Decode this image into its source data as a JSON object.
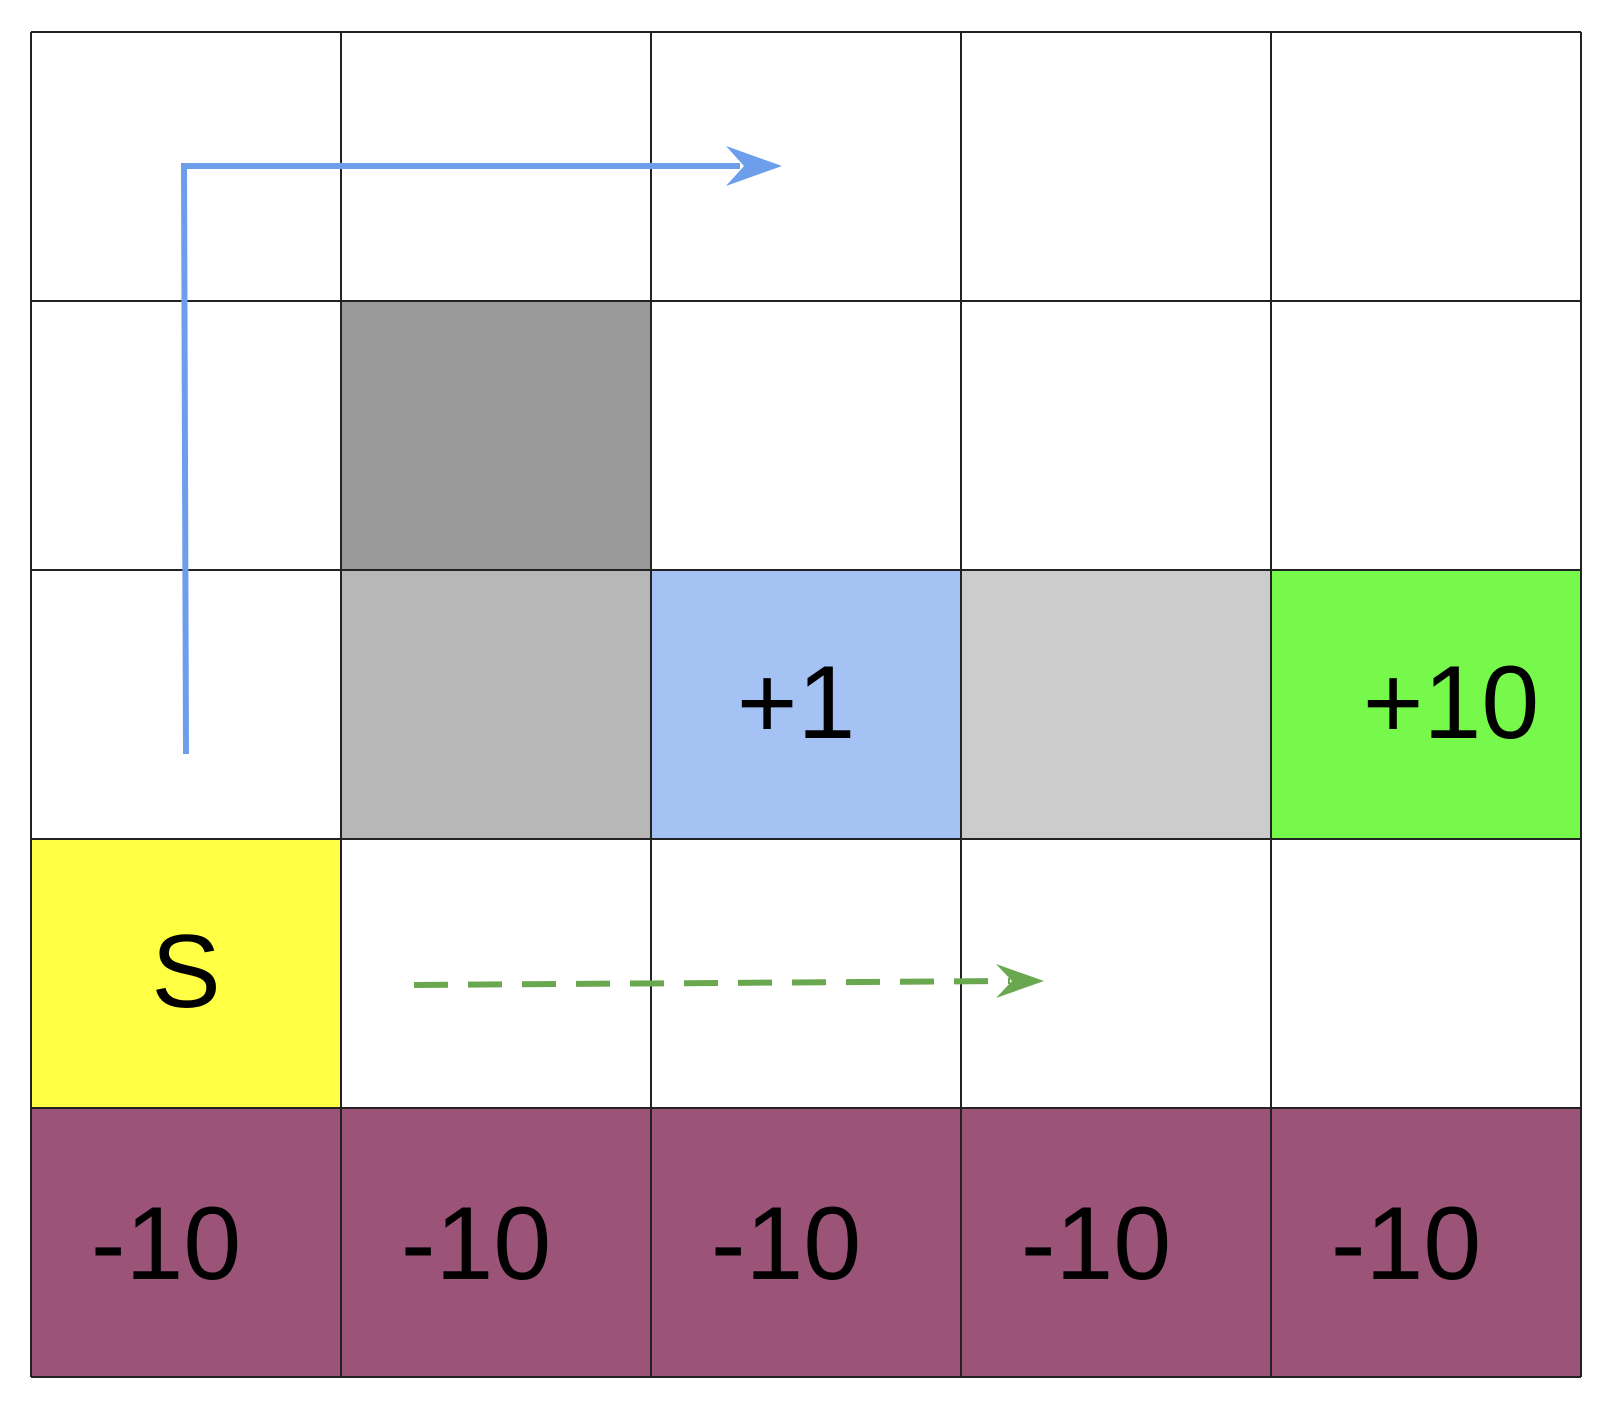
{
  "grid": {
    "rows": 5,
    "cols": 5,
    "cells": [
      [
        {
          "label": "",
          "color": "#ffffff",
          "kind": "empty"
        },
        {
          "label": "",
          "color": "#ffffff",
          "kind": "empty"
        },
        {
          "label": "",
          "color": "#ffffff",
          "kind": "empty"
        },
        {
          "label": "",
          "color": "#ffffff",
          "kind": "empty"
        },
        {
          "label": "",
          "color": "#ffffff",
          "kind": "empty"
        }
      ],
      [
        {
          "label": "",
          "color": "#ffffff",
          "kind": "empty"
        },
        {
          "label": "",
          "color": "#999999",
          "kind": "wall"
        },
        {
          "label": "",
          "color": "#ffffff",
          "kind": "empty"
        },
        {
          "label": "",
          "color": "#ffffff",
          "kind": "empty"
        },
        {
          "label": "",
          "color": "#ffffff",
          "kind": "empty"
        }
      ],
      [
        {
          "label": "",
          "color": "#ffffff",
          "kind": "empty"
        },
        {
          "label": "",
          "color": "#b7b7b7",
          "kind": "gray"
        },
        {
          "label": "+1",
          "color": "#a4c2f4",
          "kind": "reward"
        },
        {
          "label": "",
          "color": "#cccccc",
          "kind": "gray"
        },
        {
          "label": "+10",
          "color": "#76f94a",
          "kind": "goal"
        }
      ],
      [
        {
          "label": "S",
          "color": "#ffff44",
          "kind": "start"
        },
        {
          "label": "",
          "color": "#ffffff",
          "kind": "empty"
        },
        {
          "label": "",
          "color": "#ffffff",
          "kind": "empty"
        },
        {
          "label": "",
          "color": "#ffffff",
          "kind": "empty"
        },
        {
          "label": "",
          "color": "#ffffff",
          "kind": "empty"
        }
      ],
      [
        {
          "label": "-10",
          "color": "#9b5477",
          "kind": "penalty"
        },
        {
          "label": "-10",
          "color": "#9b5477",
          "kind": "penalty"
        },
        {
          "label": "-10",
          "color": "#9b5477",
          "kind": "penalty"
        },
        {
          "label": "-10",
          "color": "#9b5477",
          "kind": "penalty"
        },
        {
          "label": "-10",
          "color": "#9b5477",
          "kind": "penalty"
        }
      ]
    ]
  },
  "paths": [
    {
      "name": "long-path",
      "color": "#6d9eeb",
      "style": "solid"
    },
    {
      "name": "short-path",
      "color": "#6aa84f",
      "style": "dashed"
    }
  ],
  "colors": {
    "gridline": "#222222"
  }
}
